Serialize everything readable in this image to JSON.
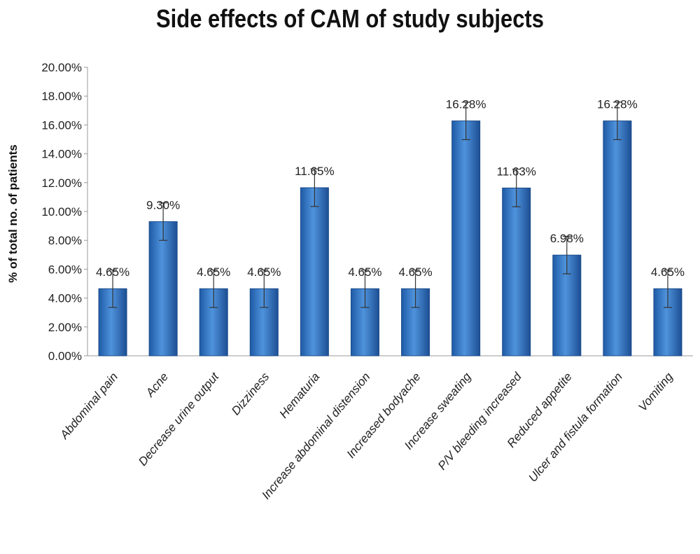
{
  "chart_data": {
    "type": "bar",
    "title": "Side effects of CAM of study subjects",
    "ylabel": "% of total no. of patients",
    "xlabel": "",
    "ylim": [
      0,
      20
    ],
    "yticks": [
      "0.00%",
      "2.00%",
      "4.00%",
      "6.00%",
      "8.00%",
      "10.00%",
      "12.00%",
      "14.00%",
      "16.00%",
      "18.00%",
      "20.00%"
    ],
    "categories": [
      "Abdominal pain",
      "Acne",
      "Decrease urine output",
      "Dizziness",
      "Hematuria",
      "Increase abdominal distension",
      "Increased bodyache",
      "Increase sweating",
      "P/V bleeding increased",
      "Reduced appetite",
      "Ulcer and fistula formation",
      "Vomiting"
    ],
    "values": [
      4.65,
      9.3,
      4.65,
      4.65,
      11.65,
      4.65,
      4.65,
      16.28,
      11.63,
      6.98,
      16.28,
      4.65
    ],
    "data_labels": [
      "4.65%",
      "9.30%",
      "4.65%",
      "4.65%",
      "11.65%",
      "4.65%",
      "4.65%",
      "16.28%",
      "11.63%",
      "6.98%",
      "16.28%",
      "4.65%"
    ],
    "error_bars": 1.3,
    "bar_color": "#3a7dc9",
    "grid": false,
    "legend": "none"
  }
}
